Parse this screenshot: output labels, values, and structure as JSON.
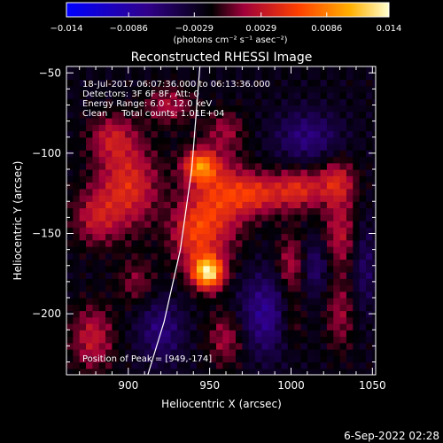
{
  "chart_data": {
    "type": "heatmap",
    "title": "Reconstructed RHESSI Image",
    "xlabel": "Heliocentric X (arcsec)",
    "ylabel": "Heliocentric Y (arcsec)",
    "xlim": [
      862,
      1052
    ],
    "ylim": [
      -238,
      -46
    ],
    "x_ticks": [
      900,
      950,
      1000,
      1050
    ],
    "y_ticks": [
      -50,
      -100,
      -150,
      -200
    ],
    "colorbar": {
      "range": [
        -0.014,
        0.014
      ],
      "tick_values": [
        -0.014,
        -0.0086,
        -0.0029,
        0.0029,
        0.0086,
        0.014
      ],
      "tick_labels": [
        "-0.014",
        "-0.0086",
        "-0.0029",
        "0.0029",
        "0.0086",
        "0.014"
      ],
      "units": "(photons cm⁻² s⁻¹ asec⁻²)"
    },
    "annotations": {
      "time_range": "18-Jul-2017 06:07:36.000 to 06:13:36.000",
      "detectors": "Detectors: 3F 6F 8F, Att: 0",
      "energy": "Energy Range: 6.0 - 12.0 keV",
      "clean": "Clean     Total counts: 1.01E+04",
      "peak": "Position of Peak = [949,-174]"
    },
    "sources": [
      {
        "x": 949,
        "y": -174,
        "amp": 0.0145,
        "sx": 6.5,
        "sy": 7
      },
      {
        "x": 944,
        "y": -108,
        "amp": 0.0095,
        "sx": 7,
        "sy": 7
      },
      {
        "x": 955,
        "y": -130,
        "amp": 0.006,
        "sx": 12,
        "sy": 22
      },
      {
        "x": 940,
        "y": -150,
        "amp": 0.006,
        "sx": 10,
        "sy": 15
      },
      {
        "x": 978,
        "y": -125,
        "amp": 0.0065,
        "sx": 13,
        "sy": 9
      },
      {
        "x": 1005,
        "y": -122,
        "amp": 0.006,
        "sx": 10,
        "sy": 9
      },
      {
        "x": 1028,
        "y": -118,
        "amp": 0.006,
        "sx": 8,
        "sy": 10
      },
      {
        "x": 1030,
        "y": -150,
        "amp": 0.0045,
        "sx": 7,
        "sy": 15
      },
      {
        "x": 1000,
        "y": -170,
        "amp": 0.0045,
        "sx": 6,
        "sy": 14
      },
      {
        "x": 1000,
        "y": -205,
        "amp": 0.003,
        "sx": 6,
        "sy": 12
      },
      {
        "x": 1030,
        "y": -200,
        "amp": 0.0035,
        "sx": 6,
        "sy": 16
      },
      {
        "x": 900,
        "y": -120,
        "amp": 0.0065,
        "sx": 13,
        "sy": 18
      },
      {
        "x": 880,
        "y": -140,
        "amp": 0.0045,
        "sx": 10,
        "sy": 12
      },
      {
        "x": 890,
        "y": -90,
        "amp": 0.0045,
        "sx": 10,
        "sy": 10
      },
      {
        "x": 878,
        "y": -215,
        "amp": 0.005,
        "sx": 9,
        "sy": 14
      },
      {
        "x": 905,
        "y": -180,
        "amp": 0.003,
        "sx": 8,
        "sy": 10
      },
      {
        "x": 925,
        "y": -70,
        "amp": 0.004,
        "sx": 10,
        "sy": 8
      },
      {
        "x": 960,
        "y": -215,
        "amp": 0.004,
        "sx": 8,
        "sy": 12
      },
      {
        "x": 960,
        "y": -85,
        "amp": 0.003,
        "sx": 8,
        "sy": 8
      },
      {
        "x": 1010,
        "y": -90,
        "amp": -0.004,
        "sx": 14,
        "sy": 12
      },
      {
        "x": 920,
        "y": -210,
        "amp": -0.004,
        "sx": 10,
        "sy": 14
      },
      {
        "x": 985,
        "y": -200,
        "amp": -0.005,
        "sx": 12,
        "sy": 18
      },
      {
        "x": 1015,
        "y": -170,
        "amp": -0.0035,
        "sx": 6,
        "sy": 12
      },
      {
        "x": 1045,
        "y": -170,
        "amp": -0.003,
        "sx": 5,
        "sy": 20
      }
    ],
    "limb_curve": [
      [
        912,
        -238
      ],
      [
        922,
        -205
      ],
      [
        932,
        -160
      ],
      [
        939,
        -110
      ],
      [
        944,
        -46
      ]
    ]
  },
  "footer": {
    "date": "6-Sep-2022 02:28"
  },
  "colors": {
    "background": "#000000",
    "foreground": "#ffffff"
  }
}
